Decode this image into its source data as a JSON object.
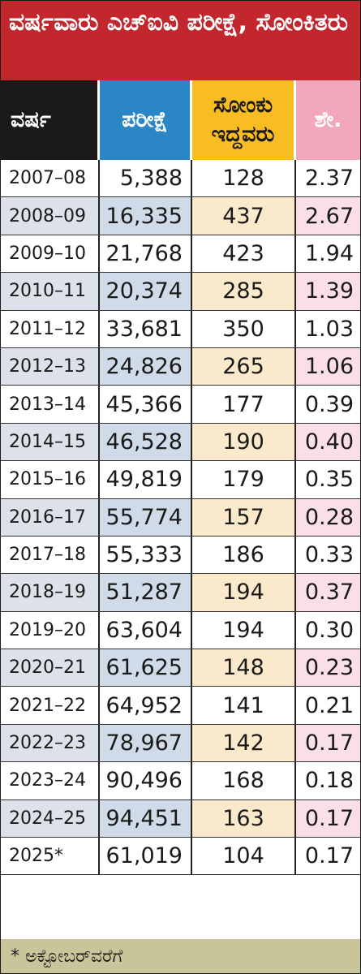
{
  "title": "ವರ್ಷವಾರು ಎಚ್‌ಐವಿ ಪರೀಕ್ಷೆ, ಸೋಂಕಿತರು",
  "headers": {
    "year": "ವರ್ಷ",
    "tests": "ಪರೀಕ್ಷೆ",
    "infected": "ಸೋಂಕು ಇದ್ದವರು",
    "percent": "ಶೇ."
  },
  "footnote": "* ಅಕ್ಟೋಬರ್‌ವರೆಗೆ",
  "colors": {
    "title_bg": "#c1272d",
    "year_header": "#1b1a19",
    "tests_header": "#2a86c4",
    "infected_header": "#f7bd22",
    "percent_header": "#f2a7ba",
    "footer_bg": "#c9c59a"
  },
  "chart_data": {
    "type": "table",
    "columns": [
      "ವರ್ಷ",
      "ಪರೀಕ್ಷೆ",
      "ಸೋಂಕು ಇದ್ದವರು",
      "ಶೇ."
    ],
    "rows": [
      {
        "year": "2007–08",
        "tests": "5,388",
        "infected": "128",
        "percent": "2.37"
      },
      {
        "year": "2008–09",
        "tests": "16,335",
        "infected": "437",
        "percent": "2.67"
      },
      {
        "year": "2009–10",
        "tests": "21,768",
        "infected": "423",
        "percent": "1.94"
      },
      {
        "year": "2010–11",
        "tests": "20,374",
        "infected": "285",
        "percent": "1.39"
      },
      {
        "year": "2011–12",
        "tests": "33,681",
        "infected": "350",
        "percent": "1.03"
      },
      {
        "year": "2012–13",
        "tests": "24,826",
        "infected": "265",
        "percent": "1.06"
      },
      {
        "year": "2013–14",
        "tests": "45,366",
        "infected": "177",
        "percent": "0.39"
      },
      {
        "year": "2014–15",
        "tests": "46,528",
        "infected": "190",
        "percent": "0.40"
      },
      {
        "year": "2015–16",
        "tests": "49,819",
        "infected": "179",
        "percent": "0.35"
      },
      {
        "year": "2016–17",
        "tests": "55,774",
        "infected": "157",
        "percent": "0.28"
      },
      {
        "year": "2017–18",
        "tests": "55,333",
        "infected": "186",
        "percent": "0.33"
      },
      {
        "year": "2018–19",
        "tests": "51,287",
        "infected": "194",
        "percent": "0.37"
      },
      {
        "year": "2019–20",
        "tests": "63,604",
        "infected": "194",
        "percent": "0.30"
      },
      {
        "year": "2020–21",
        "tests": "61,625",
        "infected": "148",
        "percent": "0.23"
      },
      {
        "year": "2021–22",
        "tests": "64,952",
        "infected": "141",
        "percent": "0.21"
      },
      {
        "year": "2022–23",
        "tests": "78,967",
        "infected": "142",
        "percent": "0.17"
      },
      {
        "year": "2023–24",
        "tests": "90,496",
        "infected": "168",
        "percent": "0.18"
      },
      {
        "year": "2024–25",
        "tests": "94,451",
        "infected": "163",
        "percent": "0.17"
      },
      {
        "year": "2025*",
        "tests": "61,019",
        "infected": "104",
        "percent": "0.17"
      }
    ]
  }
}
